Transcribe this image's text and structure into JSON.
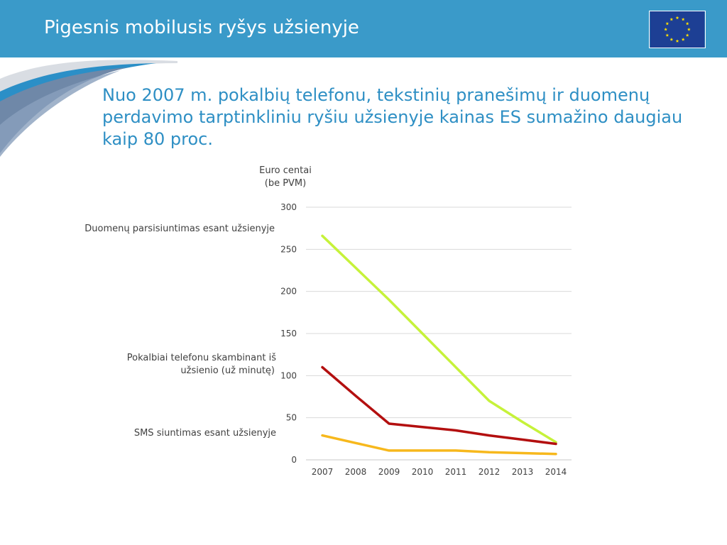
{
  "header": {
    "title": "Pigesnis mobilusis ryšys užsienyje"
  },
  "subtitle": "Nuo 2007 m. pokalbių telefonu, tekstinių pranešimų ir duomenų perdavimo tarptinkliniu ryšiu užsienyje kainas ES sumažino daugiau kaip 80 proc.",
  "colors": {
    "header": "#3a9ac9",
    "accent_text": "#2e8fc4",
    "data": "#c6f23a",
    "calls": "#b30f0f",
    "sms": "#f7b81c"
  },
  "chart_data": {
    "type": "line",
    "ylabel_lines": [
      "Euro centai",
      "(be PVM)"
    ],
    "x": [
      "2007",
      "2008",
      "2009",
      "2010",
      "2011",
      "2012",
      "2013",
      "2014"
    ],
    "yticks": [
      0,
      50,
      100,
      150,
      200,
      250,
      300
    ],
    "ylim": [
      0,
      300
    ],
    "grid": true,
    "series": [
      {
        "key": "data",
        "name": "Duomenų parsisiuntimas esant užsienyje",
        "color": "#c6f23a",
        "points": [
          [
            0,
            266
          ],
          [
            1,
            228
          ],
          [
            2,
            190
          ],
          [
            3,
            150
          ],
          [
            4,
            110
          ],
          [
            5,
            70
          ],
          [
            6,
            45
          ],
          [
            7,
            21
          ]
        ]
      },
      {
        "key": "calls",
        "name_lines": [
          "Pokalbiai telefonu skambinant iš",
          "užsienio (už minutę)"
        ],
        "color": "#b30f0f",
        "points": [
          [
            0,
            110
          ],
          [
            1,
            76
          ],
          [
            2,
            43
          ],
          [
            3,
            39
          ],
          [
            4,
            35
          ],
          [
            5,
            29
          ],
          [
            6,
            24
          ],
          [
            7,
            19
          ]
        ]
      },
      {
        "key": "sms",
        "name": "SMS siuntimas esant užsienyje",
        "color": "#f7b81c",
        "points": [
          [
            0,
            29
          ],
          [
            1,
            20
          ],
          [
            2,
            11
          ],
          [
            3,
            11
          ],
          [
            4,
            11
          ],
          [
            5,
            9
          ],
          [
            6,
            8
          ],
          [
            7,
            7
          ]
        ]
      }
    ]
  }
}
